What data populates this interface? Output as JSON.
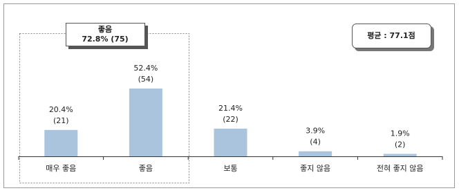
{
  "chart_data": {
    "type": "bar",
    "categories": [
      "매우 좋음",
      "좋음",
      "보통",
      "좋지 않음",
      "전혀 좋지 않음"
    ],
    "values": [
      20.4,
      52.4,
      21.4,
      3.9,
      1.9
    ],
    "value_labels": [
      "20.4%",
      "52.4%",
      "21.4%",
      "3.9%",
      "1.9%"
    ],
    "count_labels": [
      "(21)",
      "(54)",
      "(22)",
      "(4)",
      "(2)"
    ],
    "color": "#a9c4dc",
    "group_annotation": {
      "title": "좋음",
      "text": "72.8% (75)"
    },
    "average_label": "평균 : 77.1점"
  }
}
